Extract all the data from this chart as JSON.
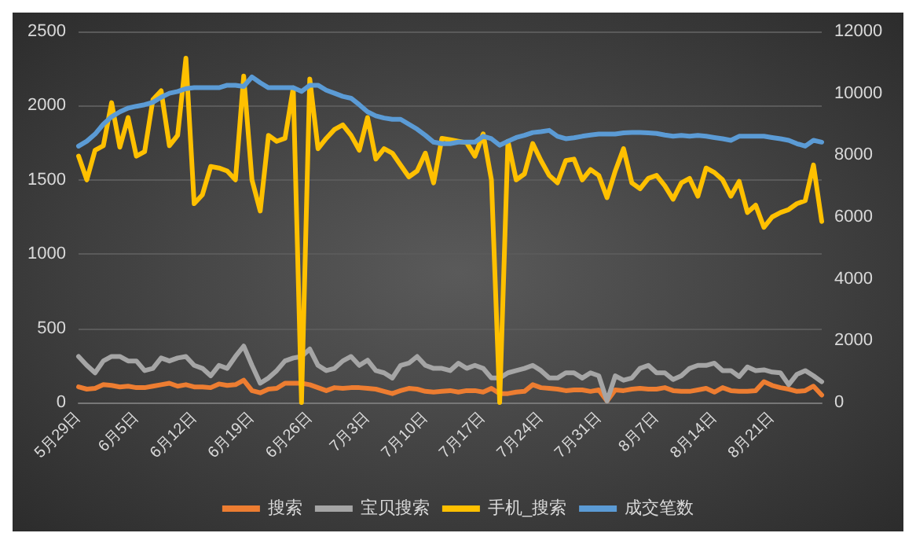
{
  "chart_data": {
    "type": "line",
    "categories": [
      "5月29日",
      null,
      null,
      null,
      null,
      null,
      null,
      "6月5日",
      null,
      null,
      null,
      null,
      null,
      null,
      "6月12日",
      null,
      null,
      null,
      null,
      null,
      null,
      "6月19日",
      null,
      null,
      null,
      null,
      null,
      null,
      "6月26日",
      null,
      null,
      null,
      null,
      null,
      null,
      "7月3日",
      null,
      null,
      null,
      null,
      null,
      null,
      "7月10日",
      null,
      null,
      null,
      null,
      null,
      null,
      "7月17日",
      null,
      null,
      null,
      null,
      null,
      null,
      "7月24日",
      null,
      null,
      null,
      null,
      null,
      null,
      "7月31日",
      null,
      null,
      null,
      null,
      null,
      null,
      "8月7日",
      null,
      null,
      null,
      null,
      null,
      null,
      "8月14日",
      null,
      null,
      null,
      null,
      null,
      null,
      "8月21日",
      null,
      null,
      null,
      null,
      null,
      null
    ],
    "series": [
      {
        "name": "搜索",
        "color": "#ed7d31",
        "values": [
          105,
          90,
          95,
          120,
          115,
          105,
          110,
          100,
          100,
          110,
          120,
          130,
          110,
          120,
          105,
          105,
          100,
          125,
          115,
          120,
          150,
          80,
          65,
          90,
          95,
          130,
          130,
          130,
          120,
          100,
          80,
          100,
          95,
          100,
          100,
          95,
          90,
          75,
          60,
          80,
          95,
          90,
          75,
          70,
          75,
          80,
          70,
          80,
          80,
          70,
          95,
          60,
          60,
          70,
          75,
          120,
          100,
          95,
          90,
          80,
          85,
          85,
          75,
          85,
          10,
          85,
          80,
          90,
          95,
          90,
          90,
          100,
          80,
          75,
          75,
          85,
          95,
          70,
          100,
          80,
          75,
          75,
          80,
          140,
          115,
          100,
          90,
          75,
          80,
          110,
          50
        ]
      },
      {
        "name": "宝贝搜索",
        "color": "#a5a5a5",
        "values": [
          310,
          250,
          200,
          280,
          310,
          310,
          280,
          280,
          215,
          230,
          300,
          280,
          300,
          310,
          250,
          230,
          180,
          250,
          230,
          310,
          380,
          250,
          130,
          165,
          215,
          280,
          300,
          310,
          360,
          250,
          215,
          230,
          280,
          310,
          250,
          285,
          215,
          200,
          165,
          250,
          265,
          310,
          250,
          230,
          230,
          215,
          265,
          230,
          250,
          230,
          165,
          165,
          200,
          215,
          230,
          250,
          215,
          165,
          165,
          200,
          200,
          165,
          200,
          180,
          10,
          180,
          150,
          165,
          230,
          250,
          200,
          200,
          155,
          180,
          230,
          250,
          250,
          265,
          215,
          215,
          175,
          240,
          215,
          220,
          205,
          200,
          120,
          190,
          215,
          180,
          140
        ]
      },
      {
        "name": "手机_搜索",
        "color": "#ffc000",
        "values": [
          1660,
          1500,
          1700,
          1730,
          2020,
          1720,
          1920,
          1660,
          1690,
          2040,
          2100,
          1730,
          1800,
          2320,
          1340,
          1400,
          1590,
          1580,
          1560,
          1500,
          2200,
          1500,
          1290,
          1800,
          1760,
          1780,
          2120,
          0,
          2180,
          1710,
          1780,
          1840,
          1870,
          1800,
          1700,
          1920,
          1640,
          1710,
          1680,
          1600,
          1520,
          1560,
          1680,
          1480,
          1780,
          1770,
          1760,
          1750,
          1660,
          1810,
          1500,
          0,
          1760,
          1500,
          1540,
          1745,
          1630,
          1530,
          1480,
          1630,
          1640,
          1500,
          1570,
          1530,
          1380,
          1560,
          1710,
          1480,
          1440,
          1510,
          1530,
          1460,
          1370,
          1480,
          1510,
          1390,
          1580,
          1550,
          1500,
          1390,
          1490,
          1280,
          1330,
          1180,
          1250,
          1280,
          1300,
          1340,
          1360,
          1600,
          1220
        ]
      },
      {
        "name": "成交笔数",
        "color": "#5b9bd5",
        "axis": "y2",
        "values": [
          8290,
          8450,
          8680,
          9000,
          9240,
          9400,
          9520,
          9580,
          9630,
          9710,
          9870,
          10000,
          10060,
          10150,
          10180,
          10180,
          10180,
          10180,
          10260,
          10260,
          10220,
          10530,
          10340,
          10180,
          10180,
          10180,
          10180,
          10060,
          10260,
          10260,
          10100,
          10000,
          9900,
          9840,
          9630,
          9400,
          9270,
          9200,
          9160,
          9160,
          9000,
          8840,
          8640,
          8420,
          8370,
          8370,
          8420,
          8420,
          8420,
          8610,
          8530,
          8320,
          8450,
          8570,
          8640,
          8730,
          8760,
          8800,
          8610,
          8530,
          8560,
          8610,
          8650,
          8680,
          8680,
          8680,
          8720,
          8730,
          8730,
          8720,
          8700,
          8650,
          8610,
          8640,
          8610,
          8640,
          8610,
          8570,
          8530,
          8480,
          8610,
          8610,
          8610,
          8610,
          8570,
          8530,
          8480,
          8370,
          8290,
          8480,
          8420
        ]
      }
    ],
    "ylim": [
      0,
      2500
    ],
    "yticks": [
      0,
      500,
      1000,
      1500,
      2000,
      2500
    ],
    "y2lim": [
      0,
      12000
    ],
    "y2ticks": [
      0,
      2000,
      4000,
      6000,
      8000,
      10000,
      12000
    ],
    "grid": "y",
    "legend": "bottom",
    "marker": "none",
    "line_style": "solid"
  }
}
